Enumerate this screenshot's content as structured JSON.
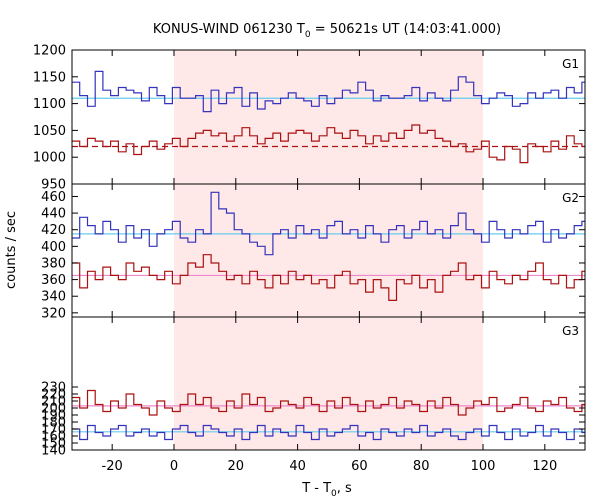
{
  "chart_data": {
    "type": "line",
    "title": "KONUS-WIND 061230 T",
    "title_sub": "0",
    "title_rest": " = 50621s UT (14:03:41.000)",
    "xlabel": "T - T",
    "xlabel_sub": "0",
    "xlabel_rest": ", s",
    "ylabel": "counts / sec",
    "xlim": [
      -33,
      133
    ],
    "xticks": [
      -20,
      0,
      20,
      40,
      60,
      80,
      100,
      120
    ],
    "xtick_labels": [
      "-20",
      "0",
      "20",
      "40",
      "60",
      "80",
      "100",
      "120"
    ],
    "highlight_interval": [
      0,
      100
    ],
    "highlight_color": "#ffe8e8",
    "grid": false,
    "panels": [
      {
        "label": "G1",
        "ylim": [
          950,
          1200
        ],
        "yticks": [
          950,
          1000,
          1050,
          1100,
          1150,
          1200
        ],
        "ytick_labels": [
          "950",
          "1000",
          "1050",
          "1100",
          "1150",
          "1200"
        ],
        "series": [
          {
            "color": "#3333bb",
            "x_start": -33,
            "step": 2.5,
            "values": [
              1140,
              1115,
              1095,
              1160,
              1125,
              1115,
              1130,
              1125,
              1120,
              1105,
              1130,
              1115,
              1100,
              1130,
              1110,
              1110,
              1115,
              1085,
              1125,
              1100,
              1120,
              1130,
              1095,
              1120,
              1090,
              1105,
              1100,
              1110,
              1120,
              1110,
              1105,
              1095,
              1115,
              1100,
              1110,
              1125,
              1120,
              1140,
              1125,
              1105,
              1115,
              1110,
              1110,
              1115,
              1130,
              1105,
              1120,
              1110,
              1105,
              1125,
              1150,
              1140,
              1115,
              1100,
              1110,
              1120,
              1115,
              1095,
              1100,
              1120,
              1110,
              1120,
              1125,
              1110,
              1130,
              1120,
              1140
            ]
          },
          {
            "color": "#aa1111",
            "x_start": -33,
            "step": 2.5,
            "values": [
              1030,
              1020,
              1035,
              1030,
              1020,
              1030,
              1010,
              1025,
              1005,
              1020,
              1030,
              1015,
              1025,
              1035,
              1020,
              1035,
              1045,
              1050,
              1040,
              1045,
              1030,
              1040,
              1055,
              1040,
              1025,
              1035,
              1045,
              1030,
              1045,
              1050,
              1045,
              1030,
              1040,
              1055,
              1045,
              1035,
              1050,
              1040,
              1025,
              1040,
              1030,
              1045,
              1035,
              1050,
              1060,
              1045,
              1050,
              1035,
              1030,
              1020,
              1025,
              1010,
              1015,
              1030,
              1000,
              995,
              1020,
              1015,
              990,
              1025,
              1020,
              1010,
              1030,
              1015,
              1040,
              1025,
              1020
            ]
          }
        ],
        "fits": [
          {
            "color": "#66ccee",
            "level": 1110,
            "style": "solid"
          },
          {
            "color": "#aa1111",
            "level": 1020,
            "style": "dashed"
          }
        ]
      },
      {
        "label": "G2",
        "ylim": [
          315,
          475
        ],
        "yticks": [
          320,
          340,
          360,
          380,
          400,
          420,
          440,
          460
        ],
        "ytick_labels": [
          "320",
          "340",
          "360",
          "380",
          "400",
          "420",
          "440",
          "460"
        ],
        "series": [
          {
            "color": "#3333bb",
            "x_start": -33,
            "step": 2.5,
            "values": [
              410,
              435,
              425,
              415,
              430,
              420,
              405,
              425,
              410,
              420,
              400,
              415,
              420,
              430,
              410,
              405,
              420,
              415,
              465,
              445,
              440,
              420,
              415,
              405,
              400,
              390,
              415,
              420,
              410,
              425,
              415,
              420,
              410,
              425,
              430,
              415,
              420,
              410,
              425,
              415,
              405,
              420,
              425,
              410,
              420,
              430,
              415,
              420,
              410,
              425,
              440,
              420,
              415,
              405,
              430,
              420,
              410,
              420,
              415,
              425,
              430,
              405,
              420,
              410,
              415,
              425,
              430
            ]
          },
          {
            "color": "#aa1111",
            "x_start": -33,
            "step": 2.5,
            "values": [
              380,
              350,
              370,
              360,
              375,
              365,
              360,
              380,
              370,
              375,
              365,
              360,
              370,
              355,
              365,
              380,
              375,
              390,
              380,
              370,
              360,
              365,
              355,
              370,
              360,
              350,
              365,
              355,
              370,
              360,
              365,
              355,
              360,
              350,
              365,
              370,
              355,
              360,
              345,
              360,
              350,
              335,
              360,
              355,
              365,
              350,
              360,
              345,
              365,
              370,
              380,
              360,
              365,
              350,
              370,
              360,
              355,
              365,
              360,
              370,
              380,
              360,
              355,
              365,
              350,
              360,
              370
            ]
          }
        ],
        "fits": [
          {
            "color": "#66ccee",
            "level": 415,
            "style": "solid"
          },
          {
            "color": "#ee88cc",
            "level": 365,
            "style": "solid"
          }
        ]
      },
      {
        "label": "G3",
        "ylim": [
          140,
          330
        ],
        "yticks": [
          140,
          150,
          160,
          170,
          180,
          190,
          200,
          210,
          220,
          230
        ],
        "ytick_labels": [
          "140",
          "150",
          "160",
          "170",
          "180",
          "190",
          "200",
          "210",
          "220",
          "230"
        ],
        "series": [
          {
            "color": "#aa1111",
            "x_start": -33,
            "step": 2.5,
            "values": [
              215,
              200,
              225,
              205,
              195,
              210,
              200,
              220,
              205,
              200,
              190,
              210,
              200,
              195,
              205,
              220,
              205,
              215,
              200,
              195,
              210,
              200,
              220,
              205,
              215,
              195,
              200,
              210,
              205,
              200,
              215,
              205,
              195,
              210,
              200,
              215,
              205,
              195,
              210,
              200,
              205,
              215,
              200,
              210,
              205,
              195,
              210,
              200,
              215,
              205,
              190,
              200,
              210,
              205,
              215,
              195,
              200,
              205,
              215,
              200,
              195,
              210,
              205,
              215,
              200,
              195,
              205
            ]
          },
          {
            "color": "#3333bb",
            "x_start": -33,
            "step": 2.5,
            "values": [
              170,
              155,
              175,
              165,
              160,
              170,
              175,
              160,
              165,
              170,
              160,
              165,
              155,
              170,
              175,
              165,
              160,
              175,
              170,
              165,
              160,
              170,
              155,
              165,
              175,
              160,
              170,
              165,
              160,
              175,
              165,
              155,
              170,
              160,
              165,
              170,
              175,
              160,
              165,
              155,
              170,
              165,
              160,
              170,
              165,
              175,
              160,
              165,
              170,
              160,
              155,
              165,
              170,
              160,
              175,
              165,
              155,
              170,
              160,
              165,
              175,
              160,
              170,
              165,
              155,
              170,
              165
            ]
          }
        ],
        "fits": [
          {
            "color": "#ee88cc",
            "level": 203,
            "style": "solid"
          },
          {
            "color": "#66ccee",
            "level": 166,
            "style": "solid"
          }
        ]
      }
    ]
  }
}
